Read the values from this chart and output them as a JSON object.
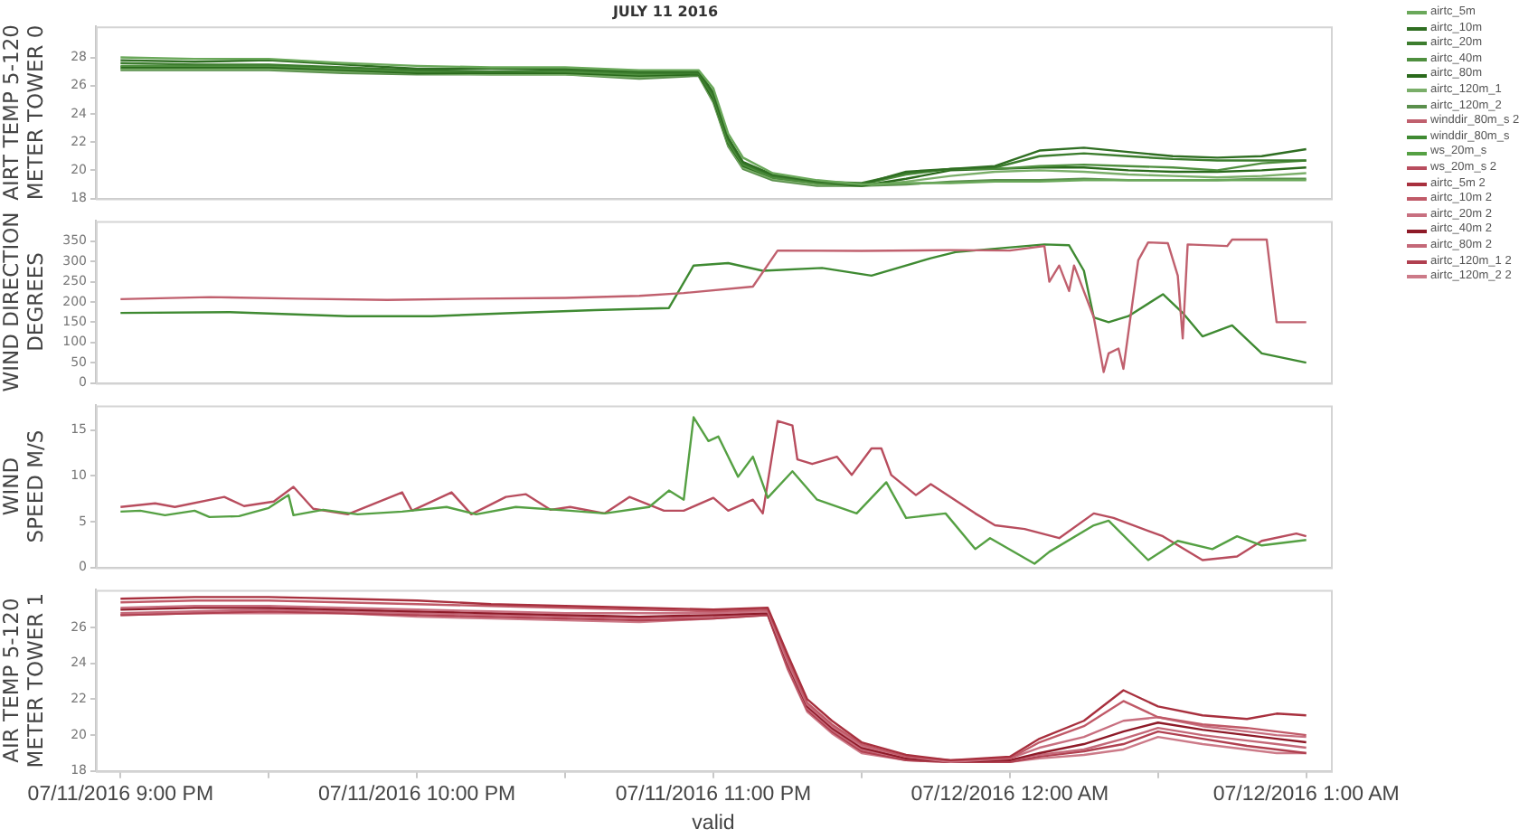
{
  "chart_data": [
    {
      "type": "line",
      "title": "JULY 11 2016",
      "ylabel": "AIRT TEMP 5-120 METER TOWER 0",
      "legend": "right",
      "tick_labels": "y",
      "xlim": [
        "2016-07-11T20:55",
        "2016-07-12T01:05"
      ],
      "ylim": [
        18,
        30.2
      ],
      "yticks": [
        18,
        20,
        22,
        24,
        26,
        28
      ],
      "x": [
        "2016-07-11T21:00",
        "2016-07-11T21:15",
        "2016-07-11T21:30",
        "2016-07-11T21:45",
        "2016-07-11T22:00",
        "2016-07-11T22:15",
        "2016-07-11T22:30",
        "2016-07-11T22:45",
        "2016-07-11T22:57",
        "2016-07-11T23:00",
        "2016-07-11T23:03",
        "2016-07-11T23:06",
        "2016-07-11T23:12",
        "2016-07-11T23:21",
        "2016-07-11T23:30",
        "2016-07-11T23:39",
        "2016-07-11T23:48",
        "2016-07-11T23:57",
        "2016-07-12T00:06",
        "2016-07-12T00:15",
        "2016-07-12T00:24",
        "2016-07-12T00:33",
        "2016-07-12T00:42",
        "2016-07-12T00:51",
        "2016-07-12T01:00"
      ],
      "series": [
        {
          "name": "airtc_5m",
          "color": "#6aa85a",
          "values": [
            28.0,
            27.9,
            27.9,
            27.6,
            27.4,
            27.3,
            27.3,
            27.1,
            27.1,
            25.8,
            22.6,
            20.9,
            19.8,
            19.3,
            19.0,
            19.1,
            19.1,
            19.2,
            19.2,
            19.3,
            19.3,
            19.3,
            19.3,
            19.3,
            19.3
          ]
        },
        {
          "name": "airtc_10m",
          "color": "#2f6e22",
          "values": [
            27.8,
            27.7,
            27.8,
            27.5,
            27.2,
            27.2,
            27.2,
            27.0,
            27.0,
            25.5,
            22.3,
            20.6,
            19.7,
            19.2,
            19.0,
            19.9,
            20.1,
            20.3,
            21.4,
            21.6,
            21.3,
            21.0,
            20.9,
            21.0,
            21.5
          ]
        },
        {
          "name": "airtc_20m",
          "color": "#3c7d2e",
          "values": [
            27.6,
            27.5,
            27.5,
            27.3,
            27.1,
            27.0,
            27.1,
            26.9,
            26.9,
            25.3,
            22.2,
            20.5,
            19.6,
            19.2,
            19.1,
            19.8,
            20.1,
            20.2,
            21.0,
            21.2,
            21.0,
            20.8,
            20.7,
            20.7,
            20.7
          ]
        },
        {
          "name": "airtc_40m",
          "color": "#4f8f3f",
          "values": [
            27.4,
            27.4,
            27.4,
            27.2,
            27.0,
            27.0,
            27.0,
            26.8,
            26.9,
            25.2,
            22.0,
            20.4,
            19.5,
            19.1,
            19.0,
            19.7,
            20.1,
            20.1,
            20.3,
            20.4,
            20.3,
            20.2,
            20.0,
            20.5,
            20.7
          ]
        },
        {
          "name": "airtc_80m",
          "color": "#2a6a1c",
          "values": [
            27.3,
            27.3,
            27.3,
            27.1,
            26.9,
            26.9,
            26.9,
            26.7,
            26.8,
            25.0,
            21.9,
            20.3,
            19.5,
            19.1,
            18.9,
            19.4,
            20.0,
            20.1,
            20.2,
            20.2,
            20.0,
            19.9,
            19.9,
            20.0,
            20.2
          ]
        },
        {
          "name": "airtc_120m_1",
          "color": "#7aae69",
          "values": [
            27.2,
            27.2,
            27.2,
            27.0,
            26.9,
            26.8,
            26.8,
            26.6,
            26.8,
            24.9,
            21.8,
            20.2,
            19.4,
            19.0,
            18.9,
            19.2,
            19.6,
            19.9,
            20.0,
            19.9,
            19.7,
            19.6,
            19.5,
            19.6,
            19.8
          ]
        },
        {
          "name": "airtc_120m_2",
          "color": "#5a8f4c",
          "values": [
            27.1,
            27.1,
            27.1,
            26.9,
            26.8,
            26.8,
            26.8,
            26.5,
            26.7,
            24.8,
            21.7,
            20.1,
            19.3,
            18.9,
            18.9,
            19.0,
            19.2,
            19.3,
            19.3,
            19.4,
            19.3,
            19.3,
            19.3,
            19.4,
            19.4
          ]
        }
      ]
    },
    {
      "type": "line",
      "ylabel": "WIND DIRECTION DEGREES",
      "legend": "right",
      "tick_labels": "y",
      "xlim": [
        "2016-07-11T20:55",
        "2016-07-12T01:05"
      ],
      "ylim": [
        0,
        400
      ],
      "yticks": [
        0,
        50,
        100,
        150,
        200,
        250,
        300,
        350
      ],
      "series": [
        {
          "name": "winddir_80m_s 2",
          "color": "#c0606e",
          "x": [
            "2016-07-11T21:00",
            "2016-07-11T21:18",
            "2016-07-11T21:36",
            "2016-07-11T21:54",
            "2016-07-11T22:12",
            "2016-07-11T22:30",
            "2016-07-11T22:45",
            "2016-07-11T22:54",
            "2016-07-11T23:08",
            "2016-07-11T23:13",
            "2016-07-11T23:30",
            "2016-07-11T23:48",
            "2016-07-12T00:00",
            "2016-07-12T00:07",
            "2016-07-12T00:08",
            "2016-07-12T00:10",
            "2016-07-12T00:12",
            "2016-07-12T00:13",
            "2016-07-12T00:17",
            "2016-07-12T00:19",
            "2016-07-12T00:20",
            "2016-07-12T00:22",
            "2016-07-12T00:23",
            "2016-07-12T00:26",
            "2016-07-12T00:28",
            "2016-07-12T00:32",
            "2016-07-12T00:34",
            "2016-07-12T00:35",
            "2016-07-12T00:36",
            "2016-07-12T00:44",
            "2016-07-12T00:45",
            "2016-07-12T00:52",
            "2016-07-12T00:54",
            "2016-07-12T01:00"
          ],
          "values": [
            207,
            212,
            208,
            205,
            208,
            210,
            215,
            222,
            238,
            327,
            326,
            328,
            327,
            338,
            250,
            290,
            227,
            290,
            162,
            27,
            73,
            85,
            35,
            303,
            347,
            345,
            265,
            110,
            342,
            338,
            354,
            354,
            150,
            150
          ]
        },
        {
          "name": "winddir_80m_s",
          "color": "#3f8a32",
          "x": [
            "2016-07-11T21:00",
            "2016-07-11T21:22",
            "2016-07-11T21:46",
            "2016-07-11T22:03",
            "2016-07-11T22:18",
            "2016-07-11T22:36",
            "2016-07-11T22:51",
            "2016-07-11T22:56",
            "2016-07-11T23:03",
            "2016-07-11T23:10",
            "2016-07-11T23:22",
            "2016-07-11T23:32",
            "2016-07-11T23:44",
            "2016-07-11T23:49",
            "2016-07-12T00:07",
            "2016-07-12T00:12",
            "2016-07-12T00:15",
            "2016-07-12T00:17",
            "2016-07-12T00:20",
            "2016-07-12T00:24",
            "2016-07-12T00:31",
            "2016-07-12T00:35",
            "2016-07-12T00:39",
            "2016-07-12T00:45",
            "2016-07-12T00:51",
            "2016-07-12T01:00"
          ],
          "values": [
            173,
            175,
            165,
            165,
            172,
            180,
            185,
            290,
            296,
            277,
            284,
            265,
            308,
            323,
            342,
            340,
            277,
            162,
            150,
            165,
            219,
            173,
            115,
            142,
            73,
            50
          ]
        }
      ]
    },
    {
      "type": "line",
      "ylabel": "WIND SPEED M/S",
      "legend": "right",
      "tick_labels": "y",
      "xlim": [
        "2016-07-11T20:55",
        "2016-07-12T01:05"
      ],
      "ylim": [
        0,
        17.7
      ],
      "yticks": [
        0,
        5,
        10,
        15
      ],
      "series": [
        {
          "name": "ws_20m_s",
          "color": "#55a043",
          "x": [
            "2016-07-11T21:00",
            "2016-07-11T21:04",
            "2016-07-11T21:09",
            "2016-07-11T21:15",
            "2016-07-11T21:18",
            "2016-07-11T21:24",
            "2016-07-11T21:30",
            "2016-07-11T21:34",
            "2016-07-11T21:35",
            "2016-07-11T21:41",
            "2016-07-11T21:48",
            "2016-07-11T21:57",
            "2016-07-11T22:06",
            "2016-07-11T22:12",
            "2016-07-11T22:20",
            "2016-07-11T22:31",
            "2016-07-11T22:38",
            "2016-07-11T22:47",
            "2016-07-11T22:51",
            "2016-07-11T22:54",
            "2016-07-11T22:56",
            "2016-07-11T22:59",
            "2016-07-11T23:01",
            "2016-07-11T23:05",
            "2016-07-11T23:08",
            "2016-07-11T23:11",
            "2016-07-11T23:16",
            "2016-07-11T23:21",
            "2016-07-11T23:29",
            "2016-07-11T23:35",
            "2016-07-11T23:39",
            "2016-07-11T23:47",
            "2016-07-11T23:53",
            "2016-07-11T23:56",
            "2016-07-12T00:05",
            "2016-07-12T00:08",
            "2016-07-12T00:17",
            "2016-07-12T00:20",
            "2016-07-12T00:28",
            "2016-07-12T00:34",
            "2016-07-12T00:41",
            "2016-07-12T00:46",
            "2016-07-12T00:51",
            "2016-07-12T01:00"
          ],
          "values": [
            6.1,
            6.2,
            5.7,
            6.2,
            5.5,
            5.6,
            6.5,
            7.9,
            5.7,
            6.3,
            5.8,
            6.1,
            6.6,
            5.8,
            6.6,
            6.2,
            5.9,
            6.6,
            8.4,
            7.4,
            16.4,
            13.8,
            14.3,
            9.9,
            12.1,
            7.6,
            10.5,
            7.4,
            5.9,
            9.3,
            5.4,
            5.9,
            2.0,
            3.2,
            0.4,
            1.7,
            4.6,
            5.1,
            0.8,
            2.9,
            2.0,
            3.4,
            2.4,
            3.0
          ]
        },
        {
          "name": "ws_20m_s 2",
          "color": "#b84d5e",
          "x": [
            "2016-07-11T21:00",
            "2016-07-11T21:07",
            "2016-07-11T21:11",
            "2016-07-11T21:21",
            "2016-07-11T21:25",
            "2016-07-11T21:31",
            "2016-07-11T21:35",
            "2016-07-11T21:39",
            "2016-07-11T21:46",
            "2016-07-11T21:57",
            "2016-07-11T21:59",
            "2016-07-11T22:07",
            "2016-07-11T22:11",
            "2016-07-11T22:18",
            "2016-07-11T22:22",
            "2016-07-11T22:27",
            "2016-07-11T22:31",
            "2016-07-11T22:38",
            "2016-07-11T22:43",
            "2016-07-11T22:50",
            "2016-07-11T22:54",
            "2016-07-11T23:00",
            "2016-07-11T23:03",
            "2016-07-11T23:08",
            "2016-07-11T23:10",
            "2016-07-11T23:13",
            "2016-07-11T23:16",
            "2016-07-11T23:17",
            "2016-07-11T23:20",
            "2016-07-11T23:25",
            "2016-07-11T23:28",
            "2016-07-11T23:32",
            "2016-07-11T23:34",
            "2016-07-11T23:36",
            "2016-07-11T23:41",
            "2016-07-11T23:44",
            "2016-07-11T23:53",
            "2016-07-11T23:57",
            "2016-07-12T00:03",
            "2016-07-12T00:10",
            "2016-07-12T00:17",
            "2016-07-12T00:21",
            "2016-07-12T00:31",
            "2016-07-12T00:39",
            "2016-07-12T00:46",
            "2016-07-12T00:51",
            "2016-07-12T00:58",
            "2016-07-12T01:00"
          ],
          "values": [
            6.6,
            7.0,
            6.6,
            7.7,
            6.7,
            7.2,
            8.8,
            6.4,
            5.8,
            8.2,
            6.2,
            8.2,
            5.8,
            7.7,
            8.0,
            6.3,
            6.6,
            5.9,
            7.7,
            6.2,
            6.2,
            7.6,
            6.2,
            7.4,
            5.9,
            16.0,
            15.5,
            11.8,
            11.3,
            12.1,
            10.1,
            13.0,
            13.0,
            10.1,
            7.9,
            9.1,
            5.9,
            4.6,
            4.2,
            3.2,
            5.9,
            5.4,
            3.4,
            0.8,
            1.2,
            2.9,
            3.7,
            3.4
          ]
        }
      ]
    },
    {
      "type": "line",
      "ylabel": "AIR TEMP 5-120 METER TOWER 1",
      "xlabel": "valid",
      "legend": "right",
      "xlim": [
        "2016-07-11T20:55",
        "2016-07-12T01:05"
      ],
      "ylim": [
        18,
        28.1
      ],
      "yticks": [
        18,
        20,
        22,
        24,
        26
      ],
      "xticks": [
        {
          "value": "2016-07-11T21:00",
          "label": "07/11/2016 9:00 PM"
        },
        {
          "value": "2016-07-11T21:30",
          "label": null
        },
        {
          "value": "2016-07-11T22:00",
          "label": "07/11/2016 10:00 PM"
        },
        {
          "value": "2016-07-11T22:30",
          "label": null
        },
        {
          "value": "2016-07-11T23:00",
          "label": "07/11/2016 11:00 PM"
        },
        {
          "value": "2016-07-11T23:30",
          "label": null
        },
        {
          "value": "2016-07-12T00:00",
          "label": "07/12/2016 12:00 AM"
        },
        {
          "value": "2016-07-12T00:30",
          "label": null
        },
        {
          "value": "2016-07-12T01:00",
          "label": "07/12/2016 1:00 AM"
        }
      ],
      "x": [
        "2016-07-11T21:00",
        "2016-07-11T21:15",
        "2016-07-11T21:30",
        "2016-07-11T21:45",
        "2016-07-11T22:00",
        "2016-07-11T22:15",
        "2016-07-11T22:30",
        "2016-07-11T22:45",
        "2016-07-11T23:00",
        "2016-07-11T23:11",
        "2016-07-11T23:15",
        "2016-07-11T23:19",
        "2016-07-11T23:24",
        "2016-07-11T23:30",
        "2016-07-11T23:39",
        "2016-07-11T23:48",
        "2016-07-12T00:00",
        "2016-07-12T00:06",
        "2016-07-12T00:15",
        "2016-07-12T00:23",
        "2016-07-12T00:30",
        "2016-07-12T00:39",
        "2016-07-12T00:48",
        "2016-07-12T00:54",
        "2016-07-12T01:00"
      ],
      "series": [
        {
          "name": "airtc_5m 2",
          "color": "#a8303e",
          "values": [
            27.6,
            27.7,
            27.7,
            27.6,
            27.5,
            27.3,
            27.2,
            27.1,
            27.0,
            27.1,
            24.5,
            22.0,
            20.8,
            19.6,
            18.9,
            18.6,
            18.8,
            19.8,
            20.8,
            22.5,
            21.6,
            21.1,
            20.9,
            21.2,
            21.1
          ]
        },
        {
          "name": "airtc_10m 2",
          "color": "#c05a68",
          "values": [
            27.4,
            27.5,
            27.5,
            27.4,
            27.3,
            27.2,
            27.1,
            27.0,
            26.9,
            27.0,
            24.3,
            21.8,
            20.6,
            19.5,
            18.8,
            18.6,
            18.7,
            19.6,
            20.5,
            21.9,
            21.0,
            20.6,
            20.4,
            20.2,
            20.0
          ]
        },
        {
          "name": "airtc_20m 2",
          "color": "#c87080",
          "values": [
            27.1,
            27.2,
            27.2,
            27.1,
            27.0,
            26.9,
            26.8,
            26.8,
            26.8,
            26.9,
            24.1,
            21.7,
            20.5,
            19.4,
            18.8,
            18.5,
            18.7,
            19.3,
            19.9,
            20.8,
            21.0,
            20.5,
            20.2,
            20.0,
            19.9
          ]
        },
        {
          "name": "airtc_40m 2",
          "color": "#8e1a28",
          "values": [
            27.0,
            27.1,
            27.1,
            27.0,
            26.9,
            26.8,
            26.7,
            26.6,
            26.7,
            26.8,
            24.0,
            21.6,
            20.4,
            19.3,
            18.7,
            18.5,
            18.6,
            19.0,
            19.5,
            20.2,
            20.7,
            20.3,
            20.0,
            19.8,
            19.6
          ]
        },
        {
          "name": "airtc_80m 2",
          "color": "#c46878",
          "values": [
            26.8,
            26.9,
            27.0,
            26.9,
            26.8,
            26.7,
            26.6,
            26.5,
            26.6,
            26.8,
            23.9,
            21.5,
            20.3,
            19.2,
            18.7,
            18.5,
            18.6,
            18.9,
            19.2,
            19.8,
            20.4,
            20.0,
            19.7,
            19.5,
            19.3
          ]
        },
        {
          "name": "airtc_120m_1 2",
          "color": "#b04050",
          "values": [
            26.7,
            26.8,
            26.9,
            26.8,
            26.7,
            26.6,
            26.5,
            26.4,
            26.5,
            26.7,
            23.8,
            21.4,
            20.2,
            19.1,
            18.6,
            18.5,
            18.5,
            18.8,
            19.1,
            19.5,
            20.2,
            19.8,
            19.4,
            19.2,
            19.0
          ]
        },
        {
          "name": "airtc_120m_2 2",
          "color": "#cc7a88",
          "values": [
            26.7,
            26.8,
            26.8,
            26.8,
            26.6,
            26.5,
            26.4,
            26.3,
            26.5,
            26.7,
            23.7,
            21.3,
            20.1,
            19.0,
            18.6,
            18.5,
            18.5,
            18.7,
            18.9,
            19.2,
            19.9,
            19.5,
            19.2,
            19.0,
            19.0
          ]
        }
      ]
    }
  ]
}
